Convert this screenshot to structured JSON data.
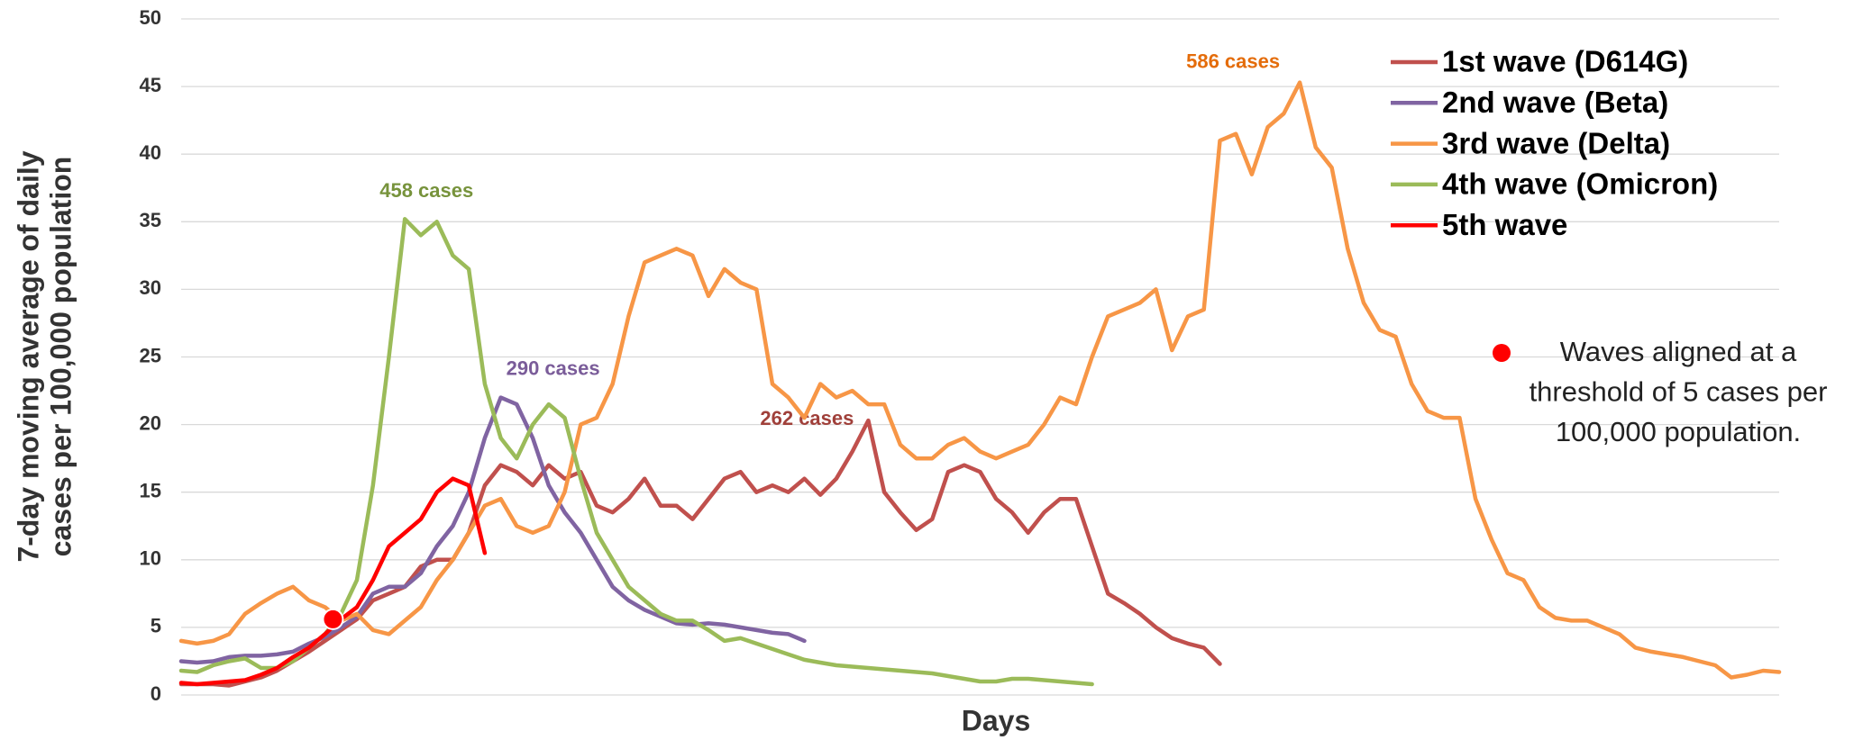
{
  "chart_data": {
    "type": "line",
    "x_label": "Days",
    "y_label": [
      "7-day moving  average of daily",
      "cases per 100,000 population"
    ],
    "ylim": [
      0,
      50
    ],
    "yticks": [
      0,
      5,
      10,
      15,
      20,
      25,
      30,
      35,
      40,
      45,
      50
    ],
    "grid": true,
    "legend": "top-right",
    "series": [
      {
        "name": "1st wave (D614G)",
        "color": "#c0504d",
        "label_color": "#a0403a",
        "peak_label": "262 cases",
        "values": [
          0.8,
          0.8,
          0.8,
          0.7,
          1.0,
          1.3,
          1.8,
          2.5,
          3.2,
          4.0,
          4.8,
          5.6,
          7.0,
          7.5,
          8.0,
          9.5,
          10.0,
          10.0,
          12.0,
          15.5,
          17.0,
          16.5,
          15.5,
          17.0,
          16.0,
          16.5,
          14.0,
          13.5,
          14.5,
          16.0,
          14.0,
          14.0,
          13.0,
          14.5,
          16.0,
          16.5,
          15.0,
          15.5,
          15.0,
          16.0,
          14.8,
          16.0,
          18.0,
          20.3,
          15.0,
          13.5,
          12.2,
          13.0,
          16.5,
          17.0,
          16.5,
          14.5,
          13.5,
          12.0,
          13.5,
          14.5,
          14.5,
          11.0,
          7.5,
          6.8,
          6.0,
          5.0,
          4.2,
          3.8,
          3.5,
          2.3
        ]
      },
      {
        "name": "2nd wave (Beta)",
        "color": "#8064a2",
        "label_color": "#7a5c99",
        "peak_label": "290 cases",
        "values": [
          2.5,
          2.4,
          2.5,
          2.8,
          2.9,
          2.9,
          3.0,
          3.2,
          3.8,
          4.3,
          5.0,
          5.8,
          7.5,
          8.0,
          8.0,
          9.0,
          11.0,
          12.5,
          15.0,
          19.0,
          22.0,
          21.5,
          19.0,
          15.5,
          13.5,
          12.0,
          10.0,
          8.0,
          7.0,
          6.3,
          5.8,
          5.3,
          5.2,
          5.3,
          5.2,
          5.0,
          4.8,
          4.6,
          4.5,
          4.0
        ]
      },
      {
        "name": "3rd wave (Delta)",
        "color": "#f79646",
        "label_color": "#e46c0a",
        "peak_label": "586 cases",
        "values": [
          4.0,
          3.8,
          4.0,
          4.5,
          6.0,
          6.8,
          7.5,
          8.0,
          7.0,
          6.5,
          5.5,
          6.0,
          4.8,
          4.5,
          5.5,
          6.5,
          8.5,
          10.0,
          12.0,
          14.0,
          14.5,
          12.5,
          12.0,
          12.5,
          15.0,
          20.0,
          20.5,
          23.0,
          28.0,
          32.0,
          32.5,
          33.0,
          32.5,
          29.5,
          31.5,
          30.5,
          30.0,
          23.0,
          22.0,
          20.5,
          23.0,
          22.0,
          22.5,
          21.5,
          21.5,
          18.5,
          17.5,
          17.5,
          18.5,
          19.0,
          18.0,
          17.5,
          18.0,
          18.5,
          20.0,
          22.0,
          21.5,
          25.0,
          28.0,
          28.5,
          29.0,
          30.0,
          25.5,
          28.0,
          28.5,
          41.0,
          41.5,
          38.5,
          42.0,
          43.0,
          45.3,
          40.5,
          39.0,
          33.0,
          29.0,
          27.0,
          26.5,
          23.0,
          21.0,
          20.5,
          20.5,
          14.5,
          11.5,
          9.0,
          8.5,
          6.5,
          5.7,
          5.5,
          5.5,
          5.0,
          4.5,
          3.5,
          3.2,
          3.0,
          2.8,
          2.5,
          2.2,
          1.3,
          1.5,
          1.8,
          1.7
        ]
      },
      {
        "name": "4th wave (Omicron)",
        "color": "#9bbb59",
        "label_color": "#77933c",
        "peak_label": "458 cases",
        "values": [
          1.8,
          1.7,
          2.2,
          2.5,
          2.7,
          2.0,
          2.0,
          2.5,
          3.5,
          4.5,
          6.0,
          8.5,
          15.5,
          25.0,
          35.2,
          34.0,
          35.0,
          32.5,
          31.5,
          23.0,
          19.0,
          17.5,
          20.0,
          21.5,
          20.5,
          16.0,
          12.0,
          10.0,
          8.0,
          7.0,
          6.0,
          5.5,
          5.5,
          4.8,
          4.0,
          4.2,
          3.8,
          3.4,
          3.0,
          2.6,
          2.4,
          2.2,
          2.1,
          2.0,
          1.9,
          1.8,
          1.7,
          1.6,
          1.4,
          1.2,
          1.0,
          1.0,
          1.2,
          1.2,
          1.1,
          1.0,
          0.9,
          0.8
        ]
      },
      {
        "name": "5th wave",
        "color": "#ff0000",
        "values": [
          0.9,
          0.8,
          0.9,
          1.0,
          1.1,
          1.5,
          2.0,
          2.8,
          3.5,
          4.5,
          5.6,
          6.5,
          8.5,
          11.0,
          12.0,
          13.0,
          15.0,
          16.0,
          15.5,
          10.5
        ]
      }
    ],
    "marker": {
      "x": 9.5,
      "y": 5.6,
      "color": "#ff0000",
      "text": [
        "Waves aligned at a",
        "threshold of 5 cases per",
        "100,000 population."
      ]
    }
  }
}
